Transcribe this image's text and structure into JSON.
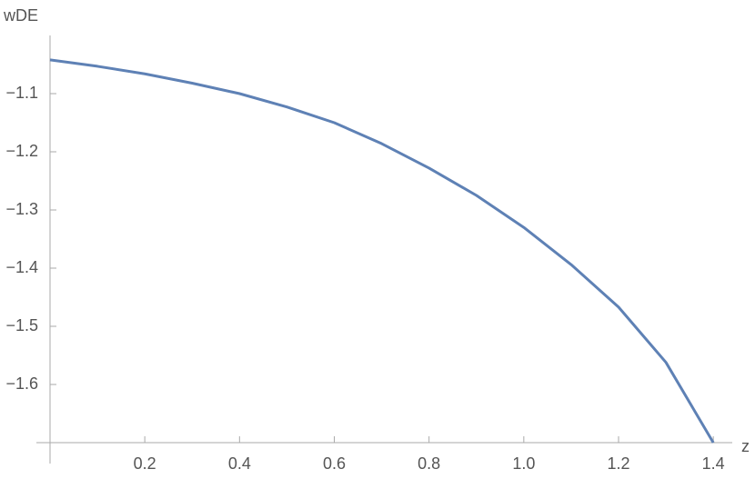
{
  "chart_data": {
    "type": "line",
    "x_label": "z",
    "y_label": "wDE",
    "x": [
      0,
      0.1,
      0.2,
      0.3,
      0.4,
      0.5,
      0.6,
      0.7,
      0.8,
      0.9,
      1.0,
      1.1,
      1.2,
      1.3,
      1.4
    ],
    "series": [
      {
        "color": "#5e81b5",
        "values": [
          -1.042,
          -1.053,
          -1.066,
          -1.082,
          -1.1,
          -1.123,
          -1.15,
          -1.186,
          -1.228,
          -1.275,
          -1.33,
          -1.394,
          -1.467,
          -1.562,
          -1.7
        ]
      }
    ],
    "xlim": [
      0,
      1.44
    ],
    "ylim": [
      -1.7,
      -1.0
    ],
    "xticks": [
      0.2,
      0.4,
      0.6,
      0.8,
      {
        "value": 1,
        "label": "1.0"
      },
      1.2,
      1.4
    ],
    "yticks": [
      {
        "value": -1.6,
        "label": "−1.6"
      },
      {
        "value": -1.5,
        "label": "−1.5"
      },
      {
        "value": -1.4,
        "label": "−1.4"
      },
      {
        "value": -1.3,
        "label": "−1.3"
      },
      {
        "value": -1.2,
        "label": "−1.2"
      },
      {
        "value": -1.1,
        "label": "−1.1"
      }
    ]
  }
}
